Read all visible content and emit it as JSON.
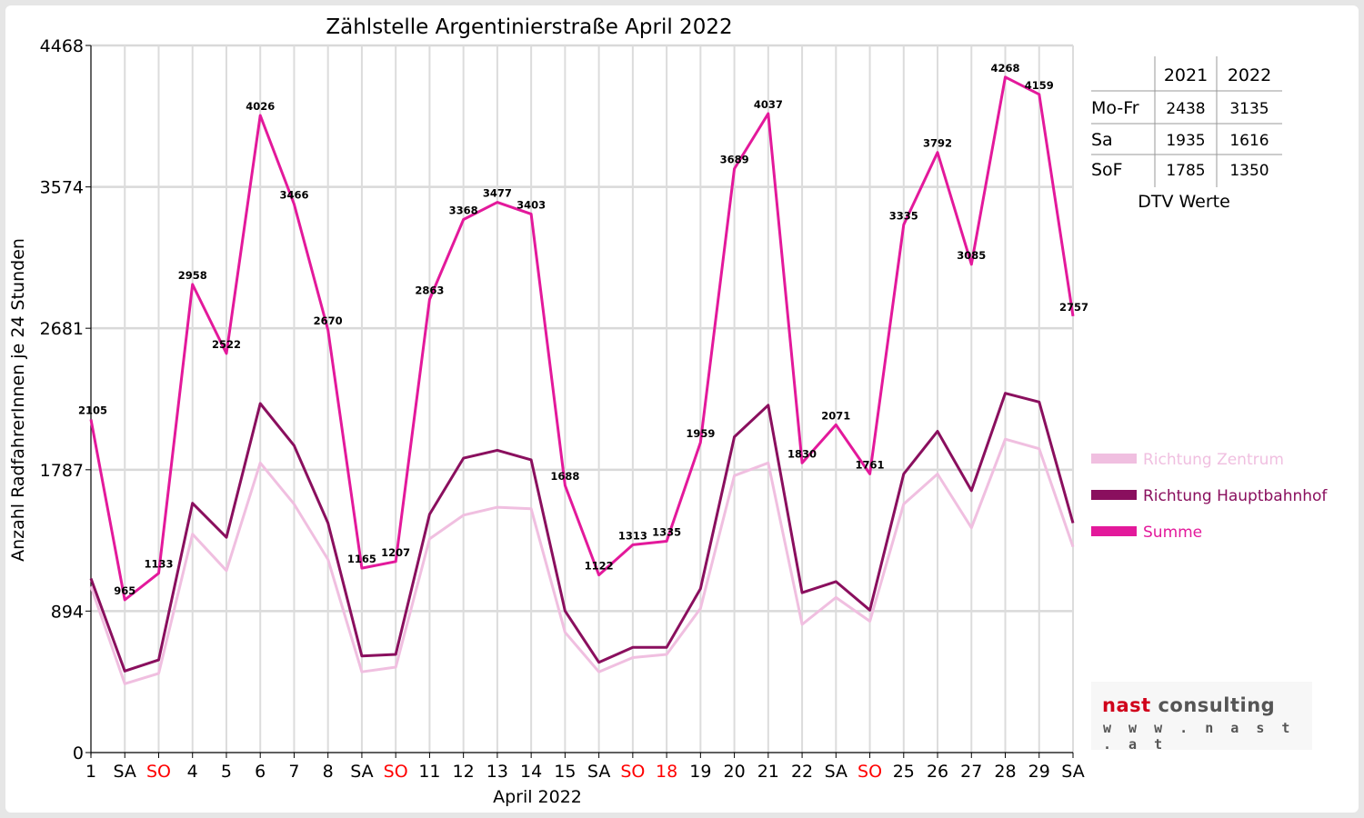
{
  "chart_data": {
    "type": "line",
    "title": "Zählstelle Argentinierstraße April 2022",
    "xlabel": "April 2022",
    "ylabel": "Anzahl RadfahrerInnen je 24 Stunden",
    "ylim": [
      0,
      4468
    ],
    "yticks": [
      0,
      894,
      1787,
      2681,
      3574,
      4468
    ],
    "grid": true,
    "legend_position": "right",
    "categories": [
      "1",
      "SA",
      "SO",
      "4",
      "5",
      "6",
      "7",
      "8",
      "SA",
      "SO",
      "11",
      "12",
      "13",
      "14",
      "15",
      "SA",
      "SO",
      "18",
      "19",
      "20",
      "21",
      "22",
      "SA",
      "SO",
      "25",
      "26",
      "27",
      "28",
      "29",
      "SA"
    ],
    "red_category_indices": [
      2,
      9,
      16,
      17,
      23
    ],
    "series": [
      {
        "name": "Richtung Zentrum",
        "color": "#f0bfe0",
        "values": [
          1050,
          435,
          500,
          1380,
          1150,
          1830,
          1570,
          1220,
          510,
          540,
          1350,
          1500,
          1550,
          1540,
          760,
          510,
          600,
          620,
          910,
          1750,
          1830,
          810,
          980,
          830,
          1570,
          1760,
          1420,
          1980,
          1920,
          1300
        ]
      },
      {
        "name": "Richtung Hauptbahnhof",
        "color": "#8a0f5e",
        "values": [
          1100,
          515,
          585,
          1575,
          1360,
          2205,
          1940,
          1450,
          610,
          620,
          1505,
          1860,
          1910,
          1850,
          895,
          570,
          665,
          665,
          1035,
          1995,
          2195,
          1010,
          1080,
          900,
          1760,
          2030,
          1655,
          2270,
          2215,
          1450
        ]
      },
      {
        "name": "Summe",
        "color": "#e3199b",
        "values": [
          2105,
          965,
          1133,
          2958,
          2522,
          4026,
          3466,
          2670,
          1165,
          1207,
          2863,
          3368,
          3477,
          3403,
          1688,
          1122,
          1313,
          1335,
          1959,
          3689,
          4037,
          1830,
          2071,
          1761,
          3335,
          3792,
          3085,
          4268,
          4159,
          2757
        ]
      }
    ]
  },
  "dtv_table": {
    "columns": [
      "2021",
      "2022"
    ],
    "rows": [
      {
        "label": "Mo-Fr",
        "values": [
          "2438",
          "3135"
        ]
      },
      {
        "label": "Sa",
        "values": [
          "1935",
          "1616"
        ]
      },
      {
        "label": "SoF",
        "values": [
          "1785",
          "1350"
        ]
      }
    ],
    "caption": "DTV Werte"
  },
  "logo": {
    "part1": "nast",
    "part2": " consulting",
    "url": "w w w . n a s t . a t"
  }
}
